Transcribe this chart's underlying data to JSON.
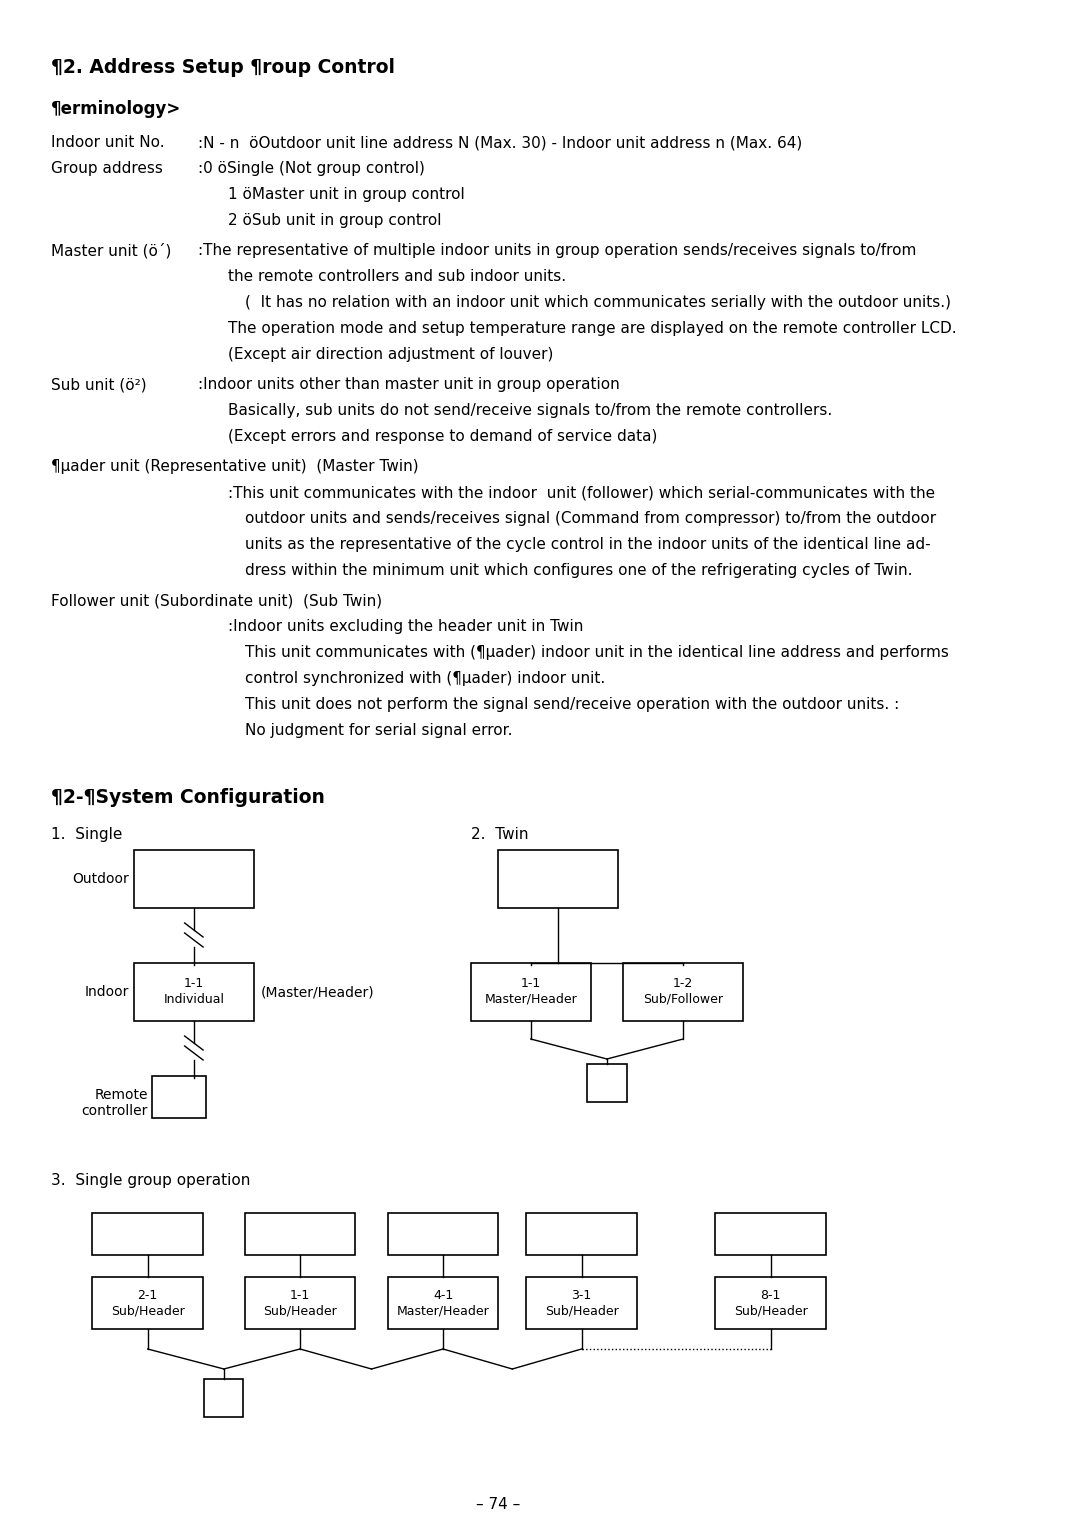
{
  "title": "¶2. Address Setup &¶oup Control",
  "subtitle": "¶erminology>",
  "section2_title": "¶2-¶System Configuration",
  "single_label": "1.  Single",
  "twin_label": "2.  Twin",
  "single_group_label": "3.  Single group operation",
  "page_number": "– 74 –",
  "bg_color": "#ffffff",
  "text_color": "#000000"
}
